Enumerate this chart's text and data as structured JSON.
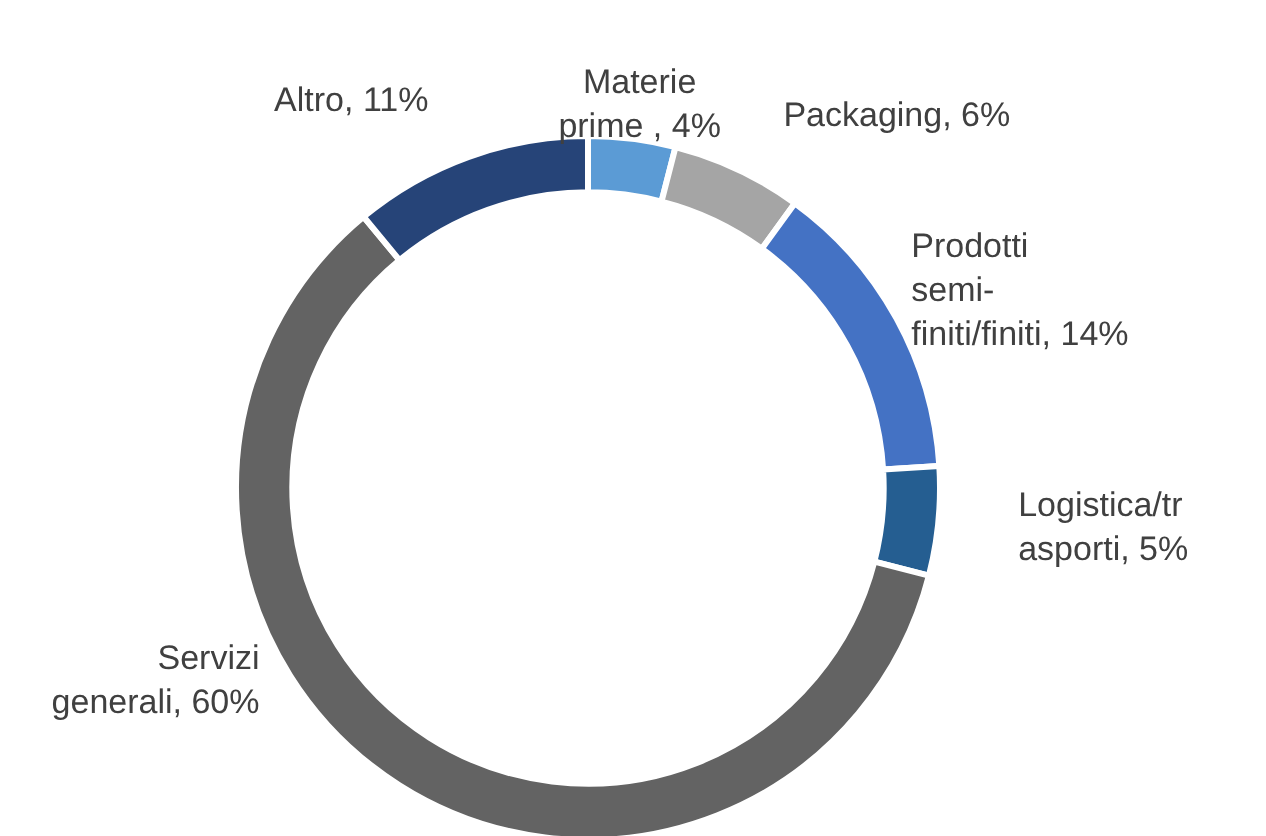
{
  "chart_data": {
    "type": "donut",
    "categories": [
      "Materie prime ",
      "Packaging",
      "Prodotti semi-finiti/finiti",
      "Logistica/trasporti",
      "Servizi generali",
      "Altro"
    ],
    "values": [
      4,
      6,
      14,
      5,
      60,
      11
    ],
    "colors": [
      "#5b9bd5",
      "#a5a5a5",
      "#4472c4",
      "#255e91",
      "#636363",
      "#264478"
    ],
    "value_labels": [
      "4%",
      "6%",
      "14%",
      "5%",
      "60%",
      "11%"
    ]
  }
}
